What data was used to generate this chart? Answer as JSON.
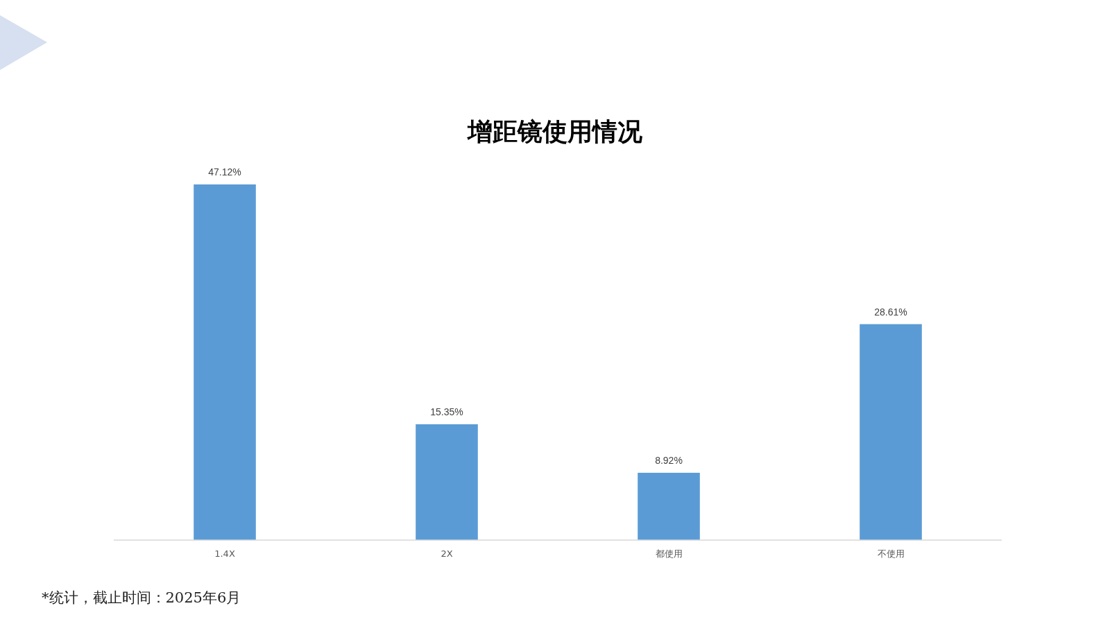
{
  "chart_data": {
    "type": "bar",
    "title": "增距镜使用情况",
    "categories": [
      "1.4X",
      "2X",
      "都使用",
      "不使用"
    ],
    "values": [
      47.12,
      15.35,
      8.92,
      28.61
    ],
    "color": "#5b9bd5",
    "value_labels": [
      "47.12%",
      "15.35%",
      "8.92%",
      "28.61%"
    ],
    "annotations": [
      "*统计，截止时间：2025年6月"
    ]
  }
}
